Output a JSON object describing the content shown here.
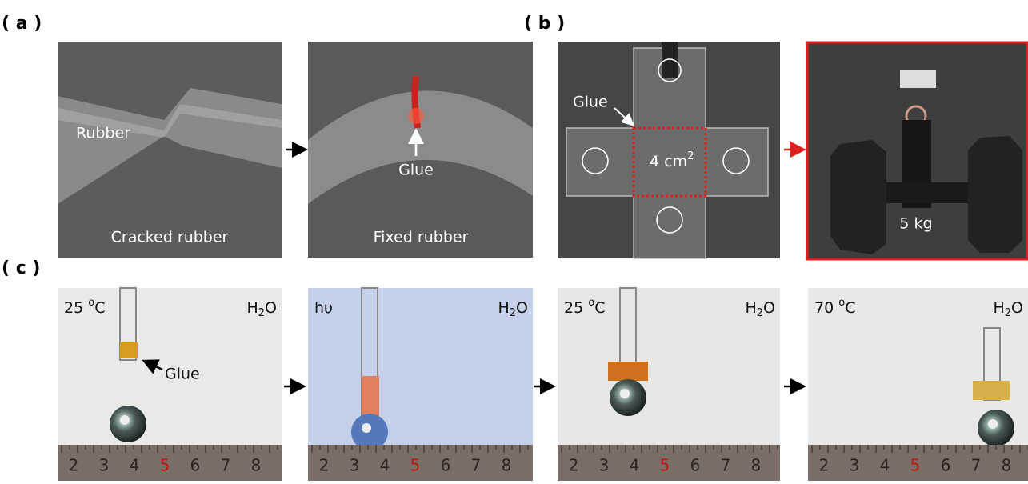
{
  "labels": {
    "a": "( a )",
    "b": "( b )",
    "c": "( c )"
  },
  "panel_a": {
    "left": {
      "label": "Rubber",
      "caption": "Cracked rubber"
    },
    "right": {
      "label": "Glue",
      "caption": "Fixed rubber"
    }
  },
  "panel_b": {
    "left": {
      "label": "Glue",
      "area": {
        "text": "4 cm",
        "sup": "2"
      }
    },
    "right": {
      "weight": "5 kg"
    }
  },
  "panel_c": [
    {
      "condition": {
        "text": "25 ",
        "sup": "o",
        "tail": "C"
      },
      "solvent": {
        "text": "H",
        "sub": "2",
        "tail": "O"
      },
      "label": "Glue",
      "ruler": [
        "2",
        "3",
        "4",
        "5",
        "6",
        "7",
        "8"
      ]
    },
    {
      "condition": {
        "text": "hυ"
      },
      "solvent": {
        "text": "H",
        "sub": "2",
        "tail": "O"
      },
      "ruler": [
        "2",
        "3",
        "4",
        "5",
        "6",
        "7",
        "8"
      ]
    },
    {
      "condition": {
        "text": "25 ",
        "sup": "o",
        "tail": "C"
      },
      "solvent": {
        "text": "H",
        "sub": "2",
        "tail": "O"
      },
      "ruler": [
        "2",
        "3",
        "4",
        "5",
        "6",
        "7",
        "8"
      ]
    },
    {
      "condition": {
        "text": "70 ",
        "sup": "o",
        "tail": "C"
      },
      "solvent": {
        "text": "H",
        "sub": "2",
        "tail": "O"
      },
      "ruler": [
        "2",
        "3",
        "4",
        "5",
        "6",
        "7",
        "8"
      ]
    }
  ]
}
